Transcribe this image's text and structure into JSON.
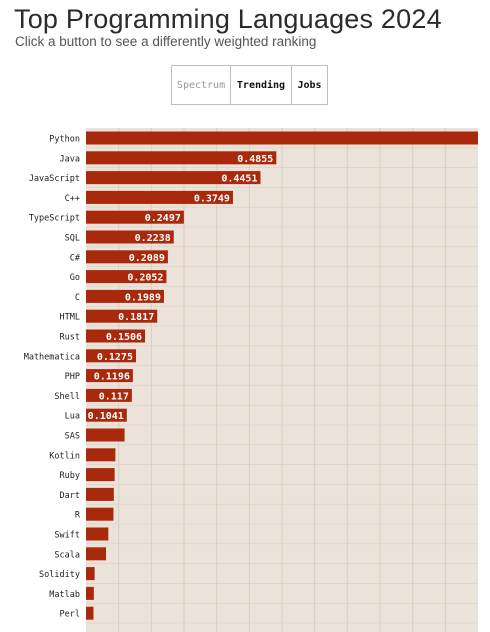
{
  "header": {
    "title": "Top Programming Languages 2024",
    "subtitle": "Click a button to see a differently weighted ranking"
  },
  "buttons": {
    "spectrum": "Spectrum",
    "trending": "Trending",
    "jobs": "Jobs"
  },
  "colors": {
    "bar": "#a8290b",
    "plot_bg": "#ebe2d9",
    "grid": "#d9cfc4"
  },
  "chart_data": {
    "type": "bar",
    "orientation": "horizontal",
    "categories": [
      "Python",
      "Java",
      "JavaScript",
      "C++",
      "TypeScript",
      "SQL",
      "C#",
      "Go",
      "C",
      "HTML",
      "Rust",
      "Mathematica",
      "PHP",
      "Shell",
      "Lua",
      "SAS",
      "Kotlin",
      "Ruby",
      "Dart",
      "R",
      "Swift",
      "Scala",
      "Solidity",
      "Matlab",
      "Perl"
    ],
    "values": [
      1.0,
      0.4855,
      0.4451,
      0.3749,
      0.2497,
      0.2238,
      0.2089,
      0.2052,
      0.1989,
      0.1817,
      0.1506,
      0.1275,
      0.1196,
      0.117,
      0.1041,
      0.0984,
      0.075,
      0.073,
      0.071,
      0.07,
      0.057,
      0.051,
      0.022,
      0.02,
      0.019
    ],
    "data_labels": [
      "",
      "0.4855",
      "0.4451",
      "0.3749",
      "0.2497",
      "0.2238",
      "0.2089",
      "0.2052",
      "0.1989",
      "0.1817",
      "0.1506",
      "0.1275",
      "0.1196",
      "0.117",
      "0.1041",
      "",
      "",
      "",
      "",
      "",
      "",
      "",
      "",
      "",
      ""
    ],
    "xlim": [
      0,
      1
    ],
    "grid": true,
    "xlabel": "",
    "ylabel": ""
  }
}
